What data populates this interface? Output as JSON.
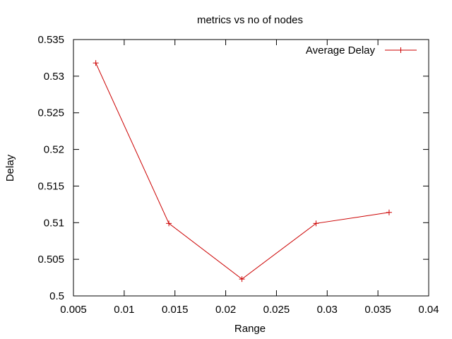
{
  "chart_data": {
    "type": "line",
    "title": "metrics vs no of nodes",
    "xlabel": "Range",
    "ylabel": "Delay",
    "xlim": [
      0.005,
      0.04
    ],
    "ylim": [
      0.5,
      0.535
    ],
    "x_ticks": [
      0.005,
      0.01,
      0.015,
      0.02,
      0.025,
      0.03,
      0.035,
      0.04
    ],
    "x_tick_labels": [
      "0.005",
      "0.01",
      "0.015",
      "0.02",
      "0.025",
      "0.03",
      "0.035",
      "0.04"
    ],
    "y_ticks": [
      0.5,
      0.505,
      0.51,
      0.515,
      0.52,
      0.525,
      0.53,
      0.535
    ],
    "y_tick_labels": [
      "0.5",
      "0.505",
      "0.51",
      "0.515",
      "0.52",
      "0.525",
      "0.53",
      "0.535"
    ],
    "grid": false,
    "legend_position": "top-right",
    "series": [
      {
        "name": "Average Delay",
        "color": "#cc0000",
        "marker": "plus",
        "x": [
          0.0072,
          0.0144,
          0.0216,
          0.0289,
          0.0361
        ],
        "y": [
          0.5318,
          0.5099,
          0.5023,
          0.5099,
          0.5114
        ]
      }
    ]
  }
}
